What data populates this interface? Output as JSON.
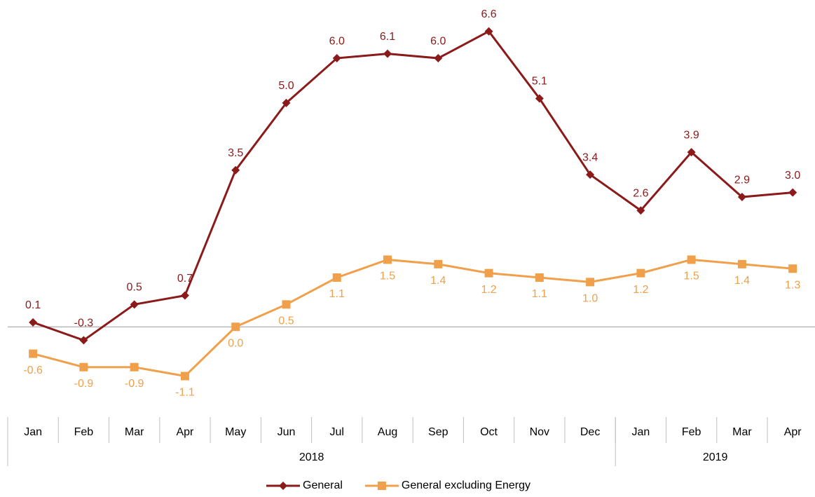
{
  "chart_data": {
    "type": "line",
    "categories": [
      "Jan",
      "Feb",
      "Mar",
      "Apr",
      "May",
      "Jun",
      "Jul",
      "Aug",
      "Sep",
      "Oct",
      "Nov",
      "Dec",
      "Jan",
      "Feb",
      "Mar",
      "Apr"
    ],
    "x_groups": [
      {
        "label": "2018",
        "span": 12
      },
      {
        "label": "2019",
        "span": 4
      }
    ],
    "series": [
      {
        "name": "General",
        "color": "#8b1a1a",
        "marker": "diamond",
        "values": [
          0.1,
          -0.3,
          0.5,
          0.7,
          3.5,
          5.0,
          6.0,
          6.1,
          6.0,
          6.6,
          5.1,
          3.4,
          2.6,
          3.9,
          2.9,
          3.0
        ],
        "value_labels": [
          "0.1",
          "-0.3",
          "0.5",
          "0.7",
          "3.5",
          "5.0",
          "6.0",
          "6.1",
          "6.0",
          "6.6",
          "5.1",
          "3.4",
          "2.6",
          "3.9",
          "2.9",
          "3.0"
        ]
      },
      {
        "name": "General excluding Energy",
        "color": "#f0a04b",
        "marker": "square",
        "values": [
          -0.6,
          -0.9,
          -0.9,
          -1.1,
          0.0,
          0.5,
          1.1,
          1.5,
          1.4,
          1.2,
          1.1,
          1.0,
          1.2,
          1.5,
          1.4,
          1.3
        ],
        "value_labels": [
          "-0.6",
          "-0.9",
          "-0.9",
          "-1.1",
          "0.0",
          "0.5",
          "1.1",
          "1.5",
          "1.4",
          "1.2",
          "1.1",
          "1.0",
          "1.2",
          "1.5",
          "1.4",
          "1.3"
        ]
      }
    ],
    "ylim": [
      -2,
      7.3
    ],
    "legend": "bottom"
  }
}
